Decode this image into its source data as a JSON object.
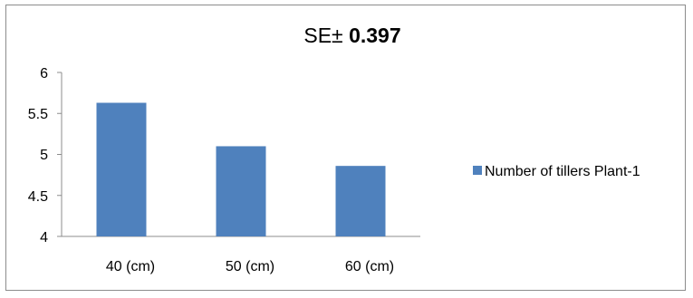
{
  "chart_data": {
    "type": "bar",
    "title_prefix": "SE±",
    "title_value": "0.397",
    "categories": [
      "40 (cm)",
      "50 (cm)",
      "60 (cm)"
    ],
    "series": [
      {
        "name": "Number of tillers Plant-1",
        "values": [
          5.63,
          5.1,
          4.86
        ],
        "color": "#4f81bd"
      }
    ],
    "xlabel": "",
    "ylabel": "",
    "ylim": [
      4,
      6
    ],
    "yticks": [
      "6",
      "5.5",
      "5",
      "4.5",
      "4"
    ],
    "grid": false,
    "legend": "right"
  }
}
